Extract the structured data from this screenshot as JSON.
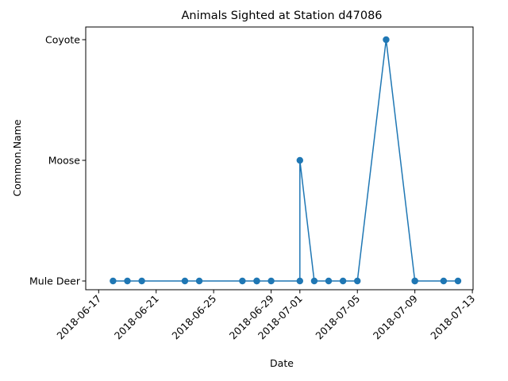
{
  "chart_data": {
    "type": "line",
    "title": "Animals Sighted at Station d47086",
    "xlabel": "Date",
    "ylabel": "Common.Name",
    "categories": [
      "Mule Deer",
      "Moose",
      "Coyote"
    ],
    "x_ticks": [
      "2018-06-17",
      "2018-06-21",
      "2018-06-25",
      "2018-06-29",
      "2018-07-01",
      "2018-07-05",
      "2018-07-09",
      "2018-07-13"
    ],
    "xlim": [
      "2018-06-16",
      "2018-07-13"
    ],
    "marker": "circle",
    "grid": false,
    "colors": {
      "series": "#1f77b4"
    },
    "series": [
      {
        "points": [
          [
            "2018-06-18",
            "Mule Deer"
          ],
          [
            "2018-06-19",
            "Mule Deer"
          ],
          [
            "2018-06-20",
            "Mule Deer"
          ],
          [
            "2018-06-23",
            "Mule Deer"
          ],
          [
            "2018-06-24",
            "Mule Deer"
          ],
          [
            "2018-06-27",
            "Mule Deer"
          ],
          [
            "2018-06-28",
            "Mule Deer"
          ],
          [
            "2018-06-28",
            "Mule Deer"
          ],
          [
            "2018-06-29",
            "Mule Deer"
          ],
          [
            "2018-07-01",
            "Mule Deer"
          ],
          [
            "2018-07-01",
            "Moose"
          ],
          [
            "2018-07-02",
            "Mule Deer"
          ],
          [
            "2018-07-03",
            "Mule Deer"
          ],
          [
            "2018-07-04",
            "Mule Deer"
          ],
          [
            "2018-07-05",
            "Mule Deer"
          ],
          [
            "2018-07-07",
            "Coyote"
          ],
          [
            "2018-07-09",
            "Mule Deer"
          ],
          [
            "2018-07-09",
            "Mule Deer"
          ],
          [
            "2018-07-11",
            "Mule Deer"
          ],
          [
            "2018-07-12",
            "Mule Deer"
          ]
        ]
      }
    ]
  }
}
